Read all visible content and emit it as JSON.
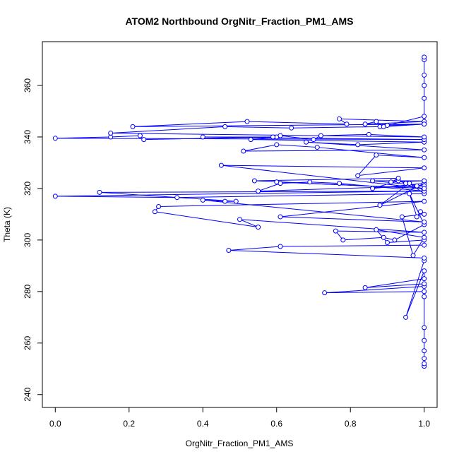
{
  "chart_data": {
    "type": "line",
    "title": "ATOM2 Northbound OrgNitr_Fraction_PM1_AMS",
    "xlabel": "OrgNitr_Fraction_PM1_AMS",
    "ylabel": "Theta (K)",
    "xlim": [
      -0.035,
      1.035
    ],
    "ylim": [
      235,
      377
    ],
    "xticks": [
      "0.0",
      "0.2",
      "0.4",
      "0.6",
      "0.8",
      "1.0"
    ],
    "yticks": [
      "240",
      "260",
      "280",
      "300",
      "320",
      "340",
      "360"
    ],
    "series": [
      {
        "color": "#0000ff",
        "marker": "open-circle",
        "x": [
          1.0,
          1.0,
          1.0,
          1.0,
          1.0,
          1.0,
          1.0,
          1.0,
          0.73,
          1.0,
          1.0,
          0.84,
          1.0,
          1.0,
          0.95,
          1.0,
          1.0,
          0.47,
          0.61,
          1.0,
          1.0,
          0.9,
          0.87,
          1.0,
          0.97,
          0.94,
          1.0,
          0.99,
          0.98,
          0.96,
          1.0,
          0.92,
          0.89,
          0.78,
          0.76,
          1.0,
          0.5,
          0.55,
          0.27,
          0.28,
          1.0,
          0.61,
          1.0,
          0.4,
          0.46,
          0.49,
          0.12,
          1.0,
          0.0,
          0.33,
          1.0,
          0.96,
          0.88,
          1.0,
          0.86,
          0.93,
          0.95,
          0.98,
          1.0,
          0.77,
          0.69,
          0.61,
          0.55,
          1.0,
          0.86,
          1.0,
          0.91,
          0.93,
          0.54,
          1.0,
          0.6,
          1.0,
          0.45,
          1.0,
          0.82,
          0.87,
          1.0,
          0.71,
          0.6,
          0.51,
          1.0,
          0.68,
          0.82,
          1.0,
          0.53,
          0.6,
          0.24,
          0.23,
          0.15,
          0.0,
          1.0,
          0.4,
          0.59,
          0.61,
          0.7,
          0.72,
          0.85,
          1.0,
          0.15,
          0.46,
          0.64,
          0.88,
          1.0,
          0.21,
          0.52,
          0.79,
          0.77,
          1.0,
          0.84,
          0.87,
          0.89,
          1.0,
          0.9,
          1.0,
          1.0,
          1.0,
          1.0,
          1.0,
          1.0
        ],
        "y": [
          251,
          252,
          254,
          257,
          261,
          266,
          278,
          280,
          279.5,
          282,
          283,
          281.5,
          285,
          288,
          270,
          292,
          293,
          296,
          297.5,
          298,
          300,
          299,
          304,
          301,
          294,
          309,
          310,
          311,
          309,
          318,
          306,
          300,
          301,
          300,
          303.5,
          303,
          308,
          305,
          311,
          313,
          315,
          309,
          307,
          315.5,
          315,
          315,
          318.5,
          319,
          317,
          316.5,
          318,
          322,
          313.5,
          322,
          320,
          323,
          322,
          321,
          319,
          322,
          322.5,
          322,
          319,
          321,
          323,
          323,
          322.5,
          324,
          323,
          320,
          322.5,
          320,
          329,
          328,
          325,
          333,
          332,
          336,
          337,
          334.5,
          335,
          338,
          337,
          338,
          339,
          340,
          339,
          340.5,
          340,
          339.5,
          339,
          340,
          340,
          340.5,
          339,
          340.5,
          341,
          340,
          341.5,
          344,
          343.5,
          344,
          345,
          344,
          346,
          345,
          347,
          346,
          345,
          346,
          344,
          345,
          344.5,
          348,
          355,
          360,
          364,
          370,
          371
        ]
      }
    ]
  }
}
